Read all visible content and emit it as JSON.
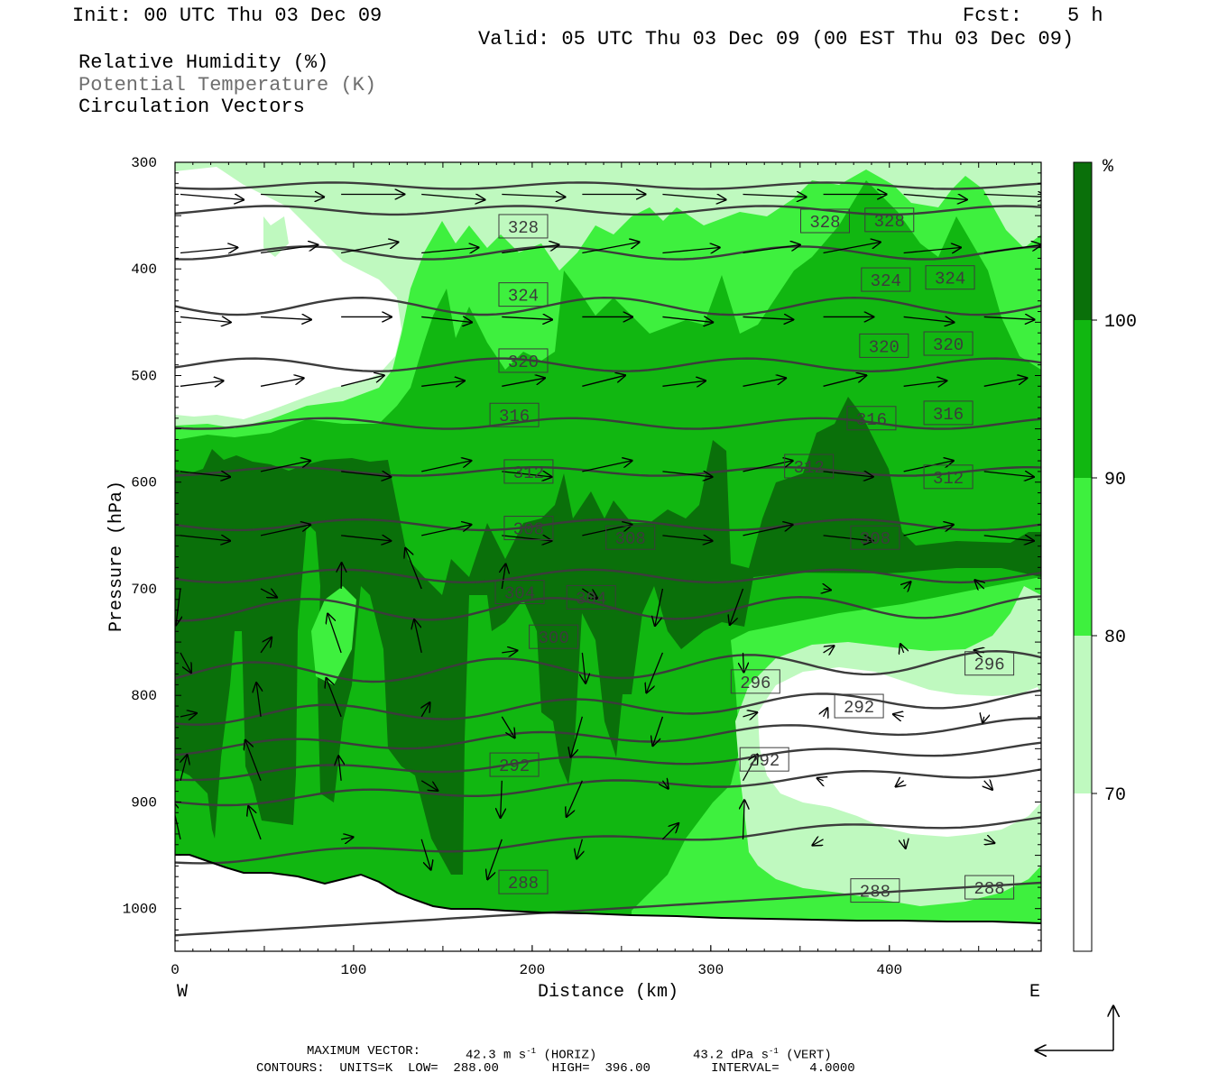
{
  "header": {
    "init": "Init: 00 UTC Thu 03 Dec 09",
    "fcst_label": "Fcst:",
    "fcst_value": "5 h",
    "valid": "Valid: 05 UTC Thu 03 Dec 09 (00 EST Thu 03 Dec 09)"
  },
  "fields": {
    "rh": "Relative Humidity (%)",
    "theta": "Potential Temperature (K)",
    "vectors": "Circulation Vectors"
  },
  "colors": {
    "rh_lt70": "#ffffff",
    "rh_70_80": "#bff9bf",
    "rh_80_90": "#3ef03e",
    "rh_90_100": "#11b711",
    "rh_ge100": "#0a700a",
    "contour": "#3c3c3c",
    "vector": "#000000"
  },
  "footer": {
    "max_vector_label": "MAXIMUM VECTOR:",
    "max_horiz": "42.3 m s",
    "horiz_tag": "(HORIZ)",
    "max_vert": "43.2 dPa s",
    "vert_tag": "(VERT)",
    "exp": "-1",
    "contours": "CONTOURS:  UNITS=K  LOW=  288.00       HIGH=  396.00        INTERVAL=    4.0000"
  },
  "chart_data": {
    "type": "heatmap",
    "xlabel": "Distance (km)",
    "ylabel": "Pressure (hPa)",
    "xlim": [
      0,
      485
    ],
    "ylim": [
      1040,
      300
    ],
    "xticks": [
      0,
      100,
      200,
      300,
      400
    ],
    "yticks": [
      300,
      400,
      500,
      600,
      700,
      800,
      900,
      1000
    ],
    "x_end_labels": {
      "left": "W",
      "right": "E"
    },
    "colorbar": {
      "unit": "%",
      "levels": [
        70,
        80,
        90,
        100
      ]
    },
    "theta_contour_labels": [
      {
        "value": "328",
        "x": 195,
        "p": 360
      },
      {
        "value": "328",
        "x": 364,
        "p": 355
      },
      {
        "value": "328",
        "x": 400,
        "p": 354
      },
      {
        "value": "324",
        "x": 195,
        "p": 424
      },
      {
        "value": "324",
        "x": 398,
        "p": 410
      },
      {
        "value": "324",
        "x": 434,
        "p": 408
      },
      {
        "value": "320",
        "x": 195,
        "p": 486
      },
      {
        "value": "320",
        "x": 397,
        "p": 472
      },
      {
        "value": "320",
        "x": 433,
        "p": 470
      },
      {
        "value": "316",
        "x": 190,
        "p": 537
      },
      {
        "value": "316",
        "x": 390,
        "p": 540
      },
      {
        "value": "316",
        "x": 433,
        "p": 535
      },
      {
        "value": "312",
        "x": 198,
        "p": 590
      },
      {
        "value": "312",
        "x": 355,
        "p": 585
      },
      {
        "value": "312",
        "x": 433,
        "p": 595
      },
      {
        "value": "308",
        "x": 198,
        "p": 643
      },
      {
        "value": "308",
        "x": 255,
        "p": 652
      },
      {
        "value": "308",
        "x": 392,
        "p": 652
      },
      {
        "value": "304",
        "x": 193,
        "p": 703
      },
      {
        "value": "304",
        "x": 233,
        "p": 708
      },
      {
        "value": "300",
        "x": 212,
        "p": 745
      },
      {
        "value": "296",
        "x": 325,
        "p": 787
      },
      {
        "value": "296",
        "x": 456,
        "p": 770
      },
      {
        "value": "292",
        "x": 383,
        "p": 810
      },
      {
        "value": "292",
        "x": 190,
        "p": 865
      },
      {
        "value": "292",
        "x": 330,
        "p": 860
      },
      {
        "value": "288",
        "x": 195,
        "p": 975
      },
      {
        "value": "288",
        "x": 392,
        "p": 983
      },
      {
        "value": "288",
        "x": 456,
        "p": 980
      }
    ]
  }
}
